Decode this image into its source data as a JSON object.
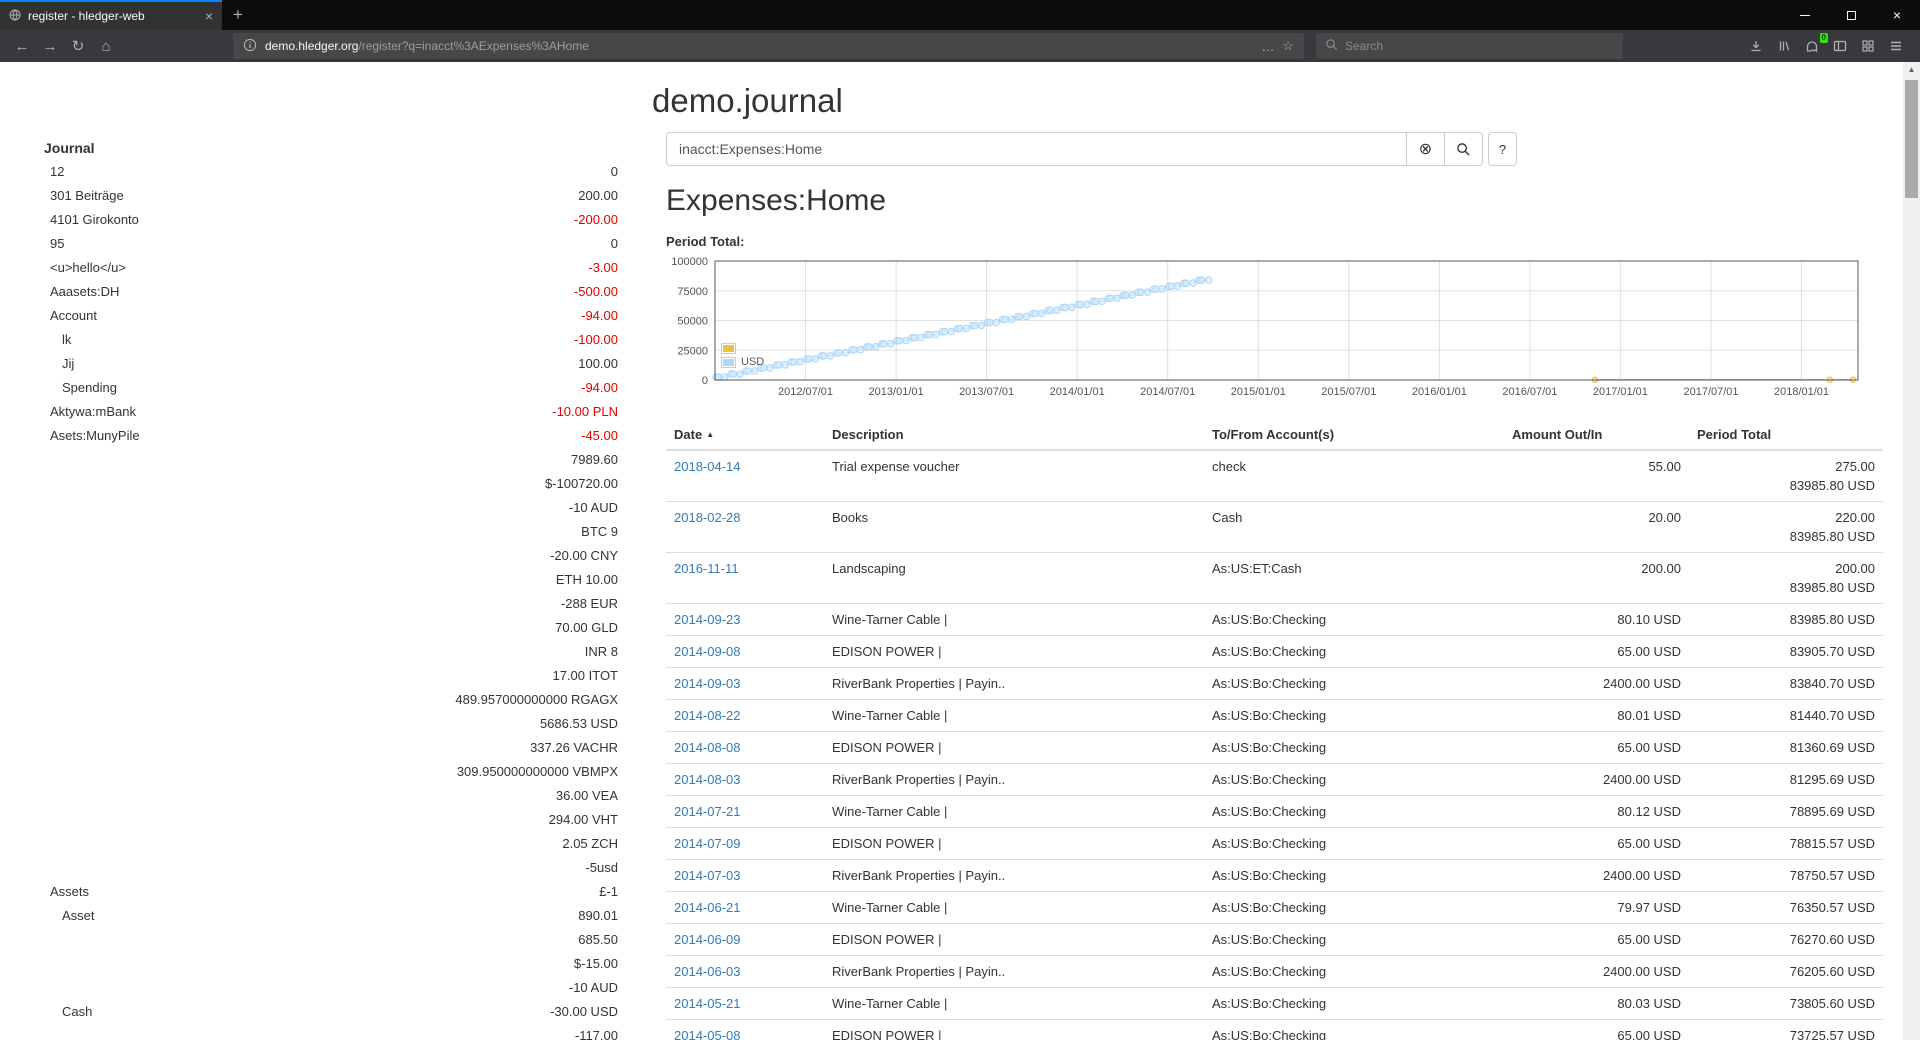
{
  "colors": {
    "tab_accent": "#0a84ff",
    "link_blue": "#337ab7",
    "negative_red": "#e50000",
    "chart_border": "#545454",
    "badge_green": "#30e60b"
  },
  "browser": {
    "tab_title": "register - hledger-web",
    "url_host": "demo.hledger.org",
    "url_path": "/register?q=inacct%3AExpenses%3AHome",
    "search_placeholder": "Search",
    "extension_badge": "0"
  },
  "icons": {
    "back": "←",
    "forward": "→",
    "reload": "↻",
    "home": "⌂",
    "bookmark_star": "☆",
    "page_actions": "…",
    "new_tab": "+",
    "tab_close": "×",
    "window_close": "×",
    "clear_query": "⊗",
    "sort_caret": "▲",
    "scroll_up": "▲"
  },
  "page": {
    "title": "demo.journal",
    "query": "inacct:Expenses:Home",
    "help_label": "?",
    "account_heading": "Expenses:Home",
    "period_total_label": "Period Total:"
  },
  "sidebar": {
    "heading": "Journal",
    "rows": [
      {
        "name": "12",
        "indent": 1,
        "balance": "0",
        "negative": false
      },
      {
        "name": "301 Beiträge",
        "indent": 1,
        "balance": "200.00",
        "negative": false
      },
      {
        "name": "4101 Girokonto",
        "indent": 1,
        "balance": "-200.00",
        "negative": true
      },
      {
        "name": "95",
        "indent": 1,
        "balance": "0",
        "negative": false
      },
      {
        "name": "<u>hello</u>",
        "indent": 1,
        "balance": "-3.00",
        "negative": true
      },
      {
        "name": "Aaasets:DH",
        "indent": 1,
        "balance": "-500.00",
        "negative": true
      },
      {
        "name": "Account",
        "indent": 1,
        "balance": "-94.00",
        "negative": true
      },
      {
        "name": "lk",
        "indent": 2,
        "balance": "-100.00",
        "negative": true
      },
      {
        "name": "Jij",
        "indent": 2,
        "balance": "100.00",
        "negative": false
      },
      {
        "name": "Spending",
        "indent": 2,
        "balance": "-94.00",
        "negative": true
      },
      {
        "name": "Aktywa:mBank",
        "indent": 1,
        "balance": "-10.00 PLN",
        "negative": true
      },
      {
        "name": "Asets:MunyPile",
        "indent": 1,
        "balance": "-45.00",
        "negative": true
      },
      {
        "name": "",
        "balance": "7989.60",
        "negative": false
      },
      {
        "name": "",
        "balance": "$-100720.00",
        "negative": false
      },
      {
        "name": "",
        "balance": "-10 AUD",
        "negative": false
      },
      {
        "name": "",
        "balance": "BTC 9",
        "negative": false
      },
      {
        "name": "",
        "balance": "-20.00 CNY",
        "negative": false
      },
      {
        "name": "",
        "balance": "ETH 10.00",
        "negative": false
      },
      {
        "name": "",
        "balance": "-288 EUR",
        "negative": false
      },
      {
        "name": "",
        "balance": "70.00 GLD",
        "negative": false
      },
      {
        "name": "",
        "balance": "INR 8",
        "negative": false
      },
      {
        "name": "",
        "balance": "17.00 ITOT",
        "negative": false
      },
      {
        "name": "",
        "balance": "489.957000000000 RGAGX",
        "negative": false
      },
      {
        "name": "",
        "balance": "5686.53 USD",
        "negative": false
      },
      {
        "name": "",
        "balance": "337.26 VACHR",
        "negative": false
      },
      {
        "name": "",
        "balance": "309.950000000000 VBMPX",
        "negative": false
      },
      {
        "name": "",
        "balance": "36.00 VEA",
        "negative": false
      },
      {
        "name": "",
        "balance": "294.00 VHT",
        "negative": false
      },
      {
        "name": "",
        "balance": "2.05 ZCH",
        "negative": false
      },
      {
        "name": "",
        "balance": "-5usd",
        "negative": false
      },
      {
        "name": "Assets",
        "indent": 1,
        "balance": "£-1",
        "negative": false
      },
      {
        "name": "Asset",
        "indent": 2,
        "balance": "890.01",
        "negative": false
      },
      {
        "name": "",
        "balance": "685.50",
        "negative": false
      },
      {
        "name": "",
        "balance": "$-15.00",
        "negative": false
      },
      {
        "name": "",
        "balance": "-10 AUD",
        "negative": false
      },
      {
        "name": "Cash",
        "indent": 2,
        "balance": "-30.00 USD",
        "negative": false
      },
      {
        "name": "",
        "balance": "-117.00",
        "negative": false
      }
    ]
  },
  "chart_data": {
    "type": "line",
    "title": "Period Total:",
    "x_type": "date",
    "xlim": [
      "2012-01-01",
      "2018-04-24"
    ],
    "ylim": [
      0,
      100000
    ],
    "y_ticks": [
      0,
      25000,
      50000,
      75000,
      100000
    ],
    "x_ticks": [
      "2012/07/01",
      "2013/01/01",
      "2013/07/01",
      "2014/01/01",
      "2014/07/01",
      "2015/01/01",
      "2015/07/01",
      "2016/01/01",
      "2016/07/01",
      "2017/01/01",
      "2017/07/01",
      "2018/01/01"
    ],
    "grid": true,
    "legend_position": "bottom-left",
    "series": [
      {
        "name": "",
        "color": "#edc240",
        "fill": "#f7e7ab",
        "marker_radius": 2.6,
        "points": [
          [
            "2016-11-11",
            200
          ],
          [
            "2018-02-28",
            220
          ],
          [
            "2018-04-14",
            275
          ]
        ]
      },
      {
        "name": "USD",
        "color": "#afd8f8",
        "fill": "#dceefb",
        "marker_radius": 3.2,
        "points": [
          [
            "2012-01-03",
            2400.57
          ],
          [
            "2012-01-08",
            2465.57
          ],
          [
            "2012-01-21",
            2545.57
          ],
          [
            "2012-02-03",
            4945.57
          ],
          [
            "2012-02-08",
            5010.57
          ],
          [
            "2012-02-21",
            5090.57
          ],
          [
            "2012-03-03",
            7490.57
          ],
          [
            "2012-03-08",
            7555.57
          ],
          [
            "2012-03-21",
            7635.57
          ],
          [
            "2012-04-03",
            10035.57
          ],
          [
            "2012-04-08",
            10100.57
          ],
          [
            "2012-04-21",
            10180.57
          ],
          [
            "2012-05-03",
            12580.57
          ],
          [
            "2012-05-08",
            12645.57
          ],
          [
            "2012-05-21",
            12725.57
          ],
          [
            "2012-06-03",
            15125.57
          ],
          [
            "2012-06-08",
            15190.57
          ],
          [
            "2012-06-21",
            15270.57
          ],
          [
            "2012-07-03",
            17670.57
          ],
          [
            "2012-07-08",
            17735.57
          ],
          [
            "2012-07-21",
            17815.57
          ],
          [
            "2012-08-03",
            20215.57
          ],
          [
            "2012-08-08",
            20280.57
          ],
          [
            "2012-08-21",
            20360.57
          ],
          [
            "2012-09-03",
            22760.57
          ],
          [
            "2012-09-08",
            22825.57
          ],
          [
            "2012-09-21",
            22905.57
          ],
          [
            "2012-10-03",
            25305.57
          ],
          [
            "2012-10-08",
            25370.57
          ],
          [
            "2012-10-21",
            25450.57
          ],
          [
            "2012-11-03",
            27850.57
          ],
          [
            "2012-11-08",
            27915.57
          ],
          [
            "2012-11-21",
            27995.57
          ],
          [
            "2012-12-03",
            30395.57
          ],
          [
            "2012-12-08",
            30460.57
          ],
          [
            "2012-12-21",
            30540.57
          ],
          [
            "2013-01-03",
            32940.57
          ],
          [
            "2013-01-08",
            33005.57
          ],
          [
            "2013-01-21",
            33085.57
          ],
          [
            "2013-02-03",
            35485.57
          ],
          [
            "2013-02-08",
            35550.57
          ],
          [
            "2013-02-21",
            35630.57
          ],
          [
            "2013-03-03",
            38030.57
          ],
          [
            "2013-03-08",
            38095.57
          ],
          [
            "2013-03-21",
            38175.57
          ],
          [
            "2013-04-03",
            40575.57
          ],
          [
            "2013-04-08",
            40640.57
          ],
          [
            "2013-04-21",
            40720.57
          ],
          [
            "2013-05-03",
            43120.57
          ],
          [
            "2013-05-08",
            43185.57
          ],
          [
            "2013-05-21",
            43265.57
          ],
          [
            "2013-06-03",
            45665.57
          ],
          [
            "2013-06-08",
            45730.57
          ],
          [
            "2013-06-21",
            45810.57
          ],
          [
            "2013-07-03",
            48210.57
          ],
          [
            "2013-07-08",
            48275.57
          ],
          [
            "2013-07-21",
            48355.57
          ],
          [
            "2013-08-03",
            50755.57
          ],
          [
            "2013-08-08",
            50820.57
          ],
          [
            "2013-08-21",
            50900.57
          ],
          [
            "2013-09-03",
            53300.57
          ],
          [
            "2013-09-08",
            53365.57
          ],
          [
            "2013-09-21",
            53445.57
          ],
          [
            "2013-10-03",
            55845.57
          ],
          [
            "2013-10-08",
            55910.57
          ],
          [
            "2013-10-21",
            55990.57
          ],
          [
            "2013-11-03",
            58390.57
          ],
          [
            "2013-11-08",
            58455.57
          ],
          [
            "2013-11-21",
            58535.57
          ],
          [
            "2013-12-03",
            60935.57
          ],
          [
            "2013-12-08",
            61000.57
          ],
          [
            "2013-12-21",
            61080.57
          ],
          [
            "2014-01-03",
            63480.57
          ],
          [
            "2014-01-08",
            63545.57
          ],
          [
            "2014-01-21",
            63625.57
          ],
          [
            "2014-02-03",
            66025.57
          ],
          [
            "2014-02-08",
            66090.57
          ],
          [
            "2014-02-21",
            66170.57
          ],
          [
            "2014-03-03",
            68570.57
          ],
          [
            "2014-03-08",
            68635.57
          ],
          [
            "2014-03-21",
            68715.57
          ],
          [
            "2014-04-03",
            71115.57
          ],
          [
            "2014-04-08",
            71180.57
          ],
          [
            "2014-04-21",
            71260.57
          ],
          [
            "2014-05-03",
            73660.57
          ],
          [
            "2014-05-08",
            73725.57
          ],
          [
            "2014-05-21",
            73805.6
          ],
          [
            "2014-06-03",
            76205.6
          ],
          [
            "2014-06-09",
            76270.6
          ],
          [
            "2014-06-21",
            76350.57
          ],
          [
            "2014-07-03",
            78750.57
          ],
          [
            "2014-07-09",
            78815.57
          ],
          [
            "2014-07-21",
            78895.69
          ],
          [
            "2014-08-03",
            81295.69
          ],
          [
            "2014-08-08",
            81360.69
          ],
          [
            "2014-08-22",
            81440.7
          ],
          [
            "2014-09-03",
            83840.7
          ],
          [
            "2014-09-08",
            83905.7
          ],
          [
            "2014-09-23",
            83985.8
          ]
        ]
      }
    ]
  },
  "register": {
    "columns": [
      "Date",
      "Description",
      "To/From Account(s)",
      "Amount Out/In",
      "Period Total"
    ],
    "rows": [
      {
        "date": "2018-04-14",
        "description": "Trial expense voucher",
        "account": "check",
        "amount": "55.00",
        "total_lines": [
          "275.00",
          "83985.80 USD"
        ]
      },
      {
        "date": "2018-02-28",
        "description": "Books",
        "account": "Cash",
        "amount": "20.00",
        "total_lines": [
          "220.00",
          "83985.80 USD"
        ]
      },
      {
        "date": "2016-11-11",
        "description": "Landscaping",
        "account": "As:US:ET:Cash",
        "amount": "200.00",
        "total_lines": [
          "200.00",
          "83985.80 USD"
        ]
      },
      {
        "date": "2014-09-23",
        "description": "Wine-Tarner Cable |",
        "account": "As:US:Bo:Checking",
        "amount": "80.10 USD",
        "total_lines": [
          "83985.80 USD"
        ]
      },
      {
        "date": "2014-09-08",
        "description": "EDISON POWER |",
        "account": "As:US:Bo:Checking",
        "amount": "65.00 USD",
        "total_lines": [
          "83905.70 USD"
        ]
      },
      {
        "date": "2014-09-03",
        "description": "RiverBank Properties | Payin..",
        "account": "As:US:Bo:Checking",
        "amount": "2400.00 USD",
        "total_lines": [
          "83840.70 USD"
        ]
      },
      {
        "date": "2014-08-22",
        "description": "Wine-Tarner Cable |",
        "account": "As:US:Bo:Checking",
        "amount": "80.01 USD",
        "total_lines": [
          "81440.70 USD"
        ]
      },
      {
        "date": "2014-08-08",
        "description": "EDISON POWER |",
        "account": "As:US:Bo:Checking",
        "amount": "65.00 USD",
        "total_lines": [
          "81360.69 USD"
        ]
      },
      {
        "date": "2014-08-03",
        "description": "RiverBank Properties | Payin..",
        "account": "As:US:Bo:Checking",
        "amount": "2400.00 USD",
        "total_lines": [
          "81295.69 USD"
        ]
      },
      {
        "date": "2014-07-21",
        "description": "Wine-Tarner Cable |",
        "account": "As:US:Bo:Checking",
        "amount": "80.12 USD",
        "total_lines": [
          "78895.69 USD"
        ]
      },
      {
        "date": "2014-07-09",
        "description": "EDISON POWER |",
        "account": "As:US:Bo:Checking",
        "amount": "65.00 USD",
        "total_lines": [
          "78815.57 USD"
        ]
      },
      {
        "date": "2014-07-03",
        "description": "RiverBank Properties | Payin..",
        "account": "As:US:Bo:Checking",
        "amount": "2400.00 USD",
        "total_lines": [
          "78750.57 USD"
        ]
      },
      {
        "date": "2014-06-21",
        "description": "Wine-Tarner Cable |",
        "account": "As:US:Bo:Checking",
        "amount": "79.97 USD",
        "total_lines": [
          "76350.57 USD"
        ]
      },
      {
        "date": "2014-06-09",
        "description": "EDISON POWER |",
        "account": "As:US:Bo:Checking",
        "amount": "65.00 USD",
        "total_lines": [
          "76270.60 USD"
        ]
      },
      {
        "date": "2014-06-03",
        "description": "RiverBank Properties | Payin..",
        "account": "As:US:Bo:Checking",
        "amount": "2400.00 USD",
        "total_lines": [
          "76205.60 USD"
        ]
      },
      {
        "date": "2014-05-21",
        "description": "Wine-Tarner Cable |",
        "account": "As:US:Bo:Checking",
        "amount": "80.03 USD",
        "total_lines": [
          "73805.60 USD"
        ]
      },
      {
        "date": "2014-05-08",
        "description": "EDISON POWER |",
        "account": "As:US:Bo:Checking",
        "amount": "65.00 USD",
        "total_lines": [
          "73725.57 USD"
        ]
      }
    ]
  }
}
